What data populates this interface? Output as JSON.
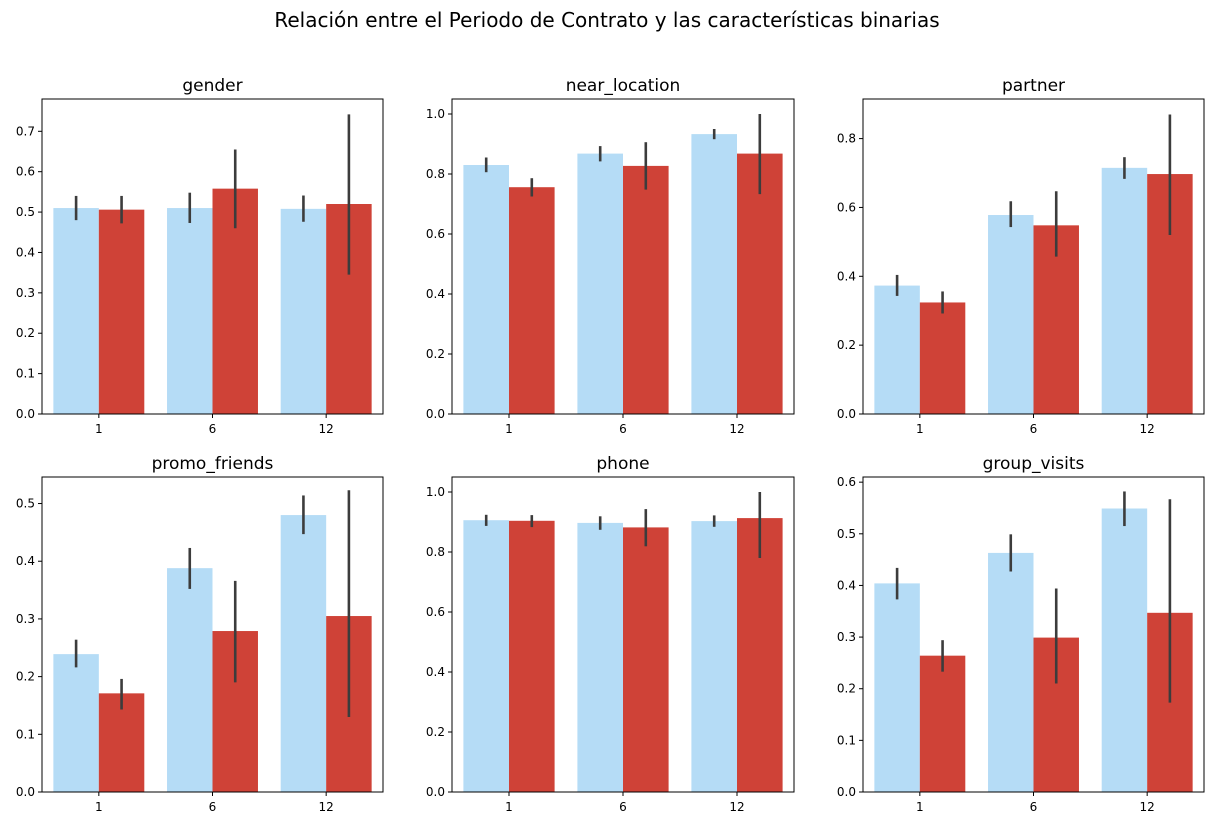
{
  "figure": {
    "suptitle": "Relación entre el Periodo de Contrato y las características binarias"
  },
  "colors": {
    "series_a": "#b5dcf6",
    "series_b": "#cf4237",
    "error_bar": "#3c3c3c"
  },
  "chart_data": [
    {
      "type": "bar",
      "title": "gender",
      "categories": [
        "1",
        "6",
        "12"
      ],
      "ylim": [
        0,
        0.78
      ],
      "yticks": [
        0.0,
        0.1,
        0.2,
        0.3,
        0.4,
        0.5,
        0.6,
        0.7
      ],
      "ytick_labels": [
        "0.0",
        "0.1",
        "0.2",
        "0.3",
        "0.4",
        "0.5",
        "0.6",
        "0.7"
      ],
      "series": [
        {
          "values": [
            0.51,
            0.51,
            0.508
          ],
          "ci": [
            [
              0.48,
              0.54
            ],
            [
              0.473,
              0.548
            ],
            [
              0.476,
              0.541
            ]
          ]
        },
        {
          "values": [
            0.506,
            0.558,
            0.52
          ],
          "ci": [
            [
              0.472,
              0.54
            ],
            [
              0.46,
              0.655
            ],
            [
              0.345,
              0.742
            ]
          ]
        }
      ]
    },
    {
      "type": "bar",
      "title": "near_location",
      "categories": [
        "1",
        "6",
        "12"
      ],
      "ylim": [
        0,
        1.05
      ],
      "yticks": [
        0.0,
        0.2,
        0.4,
        0.6,
        0.8,
        1.0
      ],
      "ytick_labels": [
        "0.0",
        "0.2",
        "0.4",
        "0.6",
        "0.8",
        "1.0"
      ],
      "series": [
        {
          "values": [
            0.83,
            0.868,
            0.933
          ],
          "ci": [
            [
              0.806,
              0.855
            ],
            [
              0.842,
              0.893
            ],
            [
              0.916,
              0.95
            ]
          ]
        },
        {
          "values": [
            0.756,
            0.827,
            0.868
          ],
          "ci": [
            [
              0.725,
              0.786
            ],
            [
              0.748,
              0.906
            ],
            [
              0.733,
              1.0
            ]
          ]
        }
      ]
    },
    {
      "type": "bar",
      "title": "partner",
      "categories": [
        "1",
        "6",
        "12"
      ],
      "ylim": [
        0,
        0.915
      ],
      "yticks": [
        0.0,
        0.2,
        0.4,
        0.6,
        0.8
      ],
      "ytick_labels": [
        "0.0",
        "0.2",
        "0.4",
        "0.6",
        "0.8"
      ],
      "series": [
        {
          "values": [
            0.373,
            0.578,
            0.715
          ],
          "ci": [
            [
              0.343,
              0.404
            ],
            [
              0.543,
              0.618
            ],
            [
              0.683,
              0.746
            ]
          ]
        },
        {
          "values": [
            0.324,
            0.548,
            0.697
          ],
          "ci": [
            [
              0.292,
              0.356
            ],
            [
              0.457,
              0.647
            ],
            [
              0.52,
              0.87
            ]
          ]
        }
      ]
    },
    {
      "type": "bar",
      "title": "promo_friends",
      "categories": [
        "1",
        "6",
        "12"
      ],
      "ylim": [
        0,
        0.546
      ],
      "yticks": [
        0.0,
        0.1,
        0.2,
        0.3,
        0.4,
        0.5
      ],
      "ytick_labels": [
        "0.0",
        "0.1",
        "0.2",
        "0.3",
        "0.4",
        "0.5"
      ],
      "series": [
        {
          "values": [
            0.239,
            0.388,
            0.48
          ],
          "ci": [
            [
              0.216,
              0.264
            ],
            [
              0.352,
              0.423
            ],
            [
              0.447,
              0.514
            ]
          ]
        },
        {
          "values": [
            0.171,
            0.279,
            0.305
          ],
          "ci": [
            [
              0.143,
              0.196
            ],
            [
              0.19,
              0.366
            ],
            [
              0.13,
              0.523
            ]
          ]
        }
      ]
    },
    {
      "type": "bar",
      "title": "phone",
      "categories": [
        "1",
        "6",
        "12"
      ],
      "ylim": [
        0,
        1.05
      ],
      "yticks": [
        0.0,
        0.2,
        0.4,
        0.6,
        0.8,
        1.0
      ],
      "ytick_labels": [
        "0.0",
        "0.2",
        "0.4",
        "0.6",
        "0.8",
        "1.0"
      ],
      "series": [
        {
          "values": [
            0.906,
            0.897,
            0.903
          ],
          "ci": [
            [
              0.887,
              0.924
            ],
            [
              0.874,
              0.919
            ],
            [
              0.884,
              0.922
            ]
          ]
        },
        {
          "values": [
            0.904,
            0.882,
            0.913
          ],
          "ci": [
            [
              0.883,
              0.923
            ],
            [
              0.819,
              0.943
            ],
            [
              0.78,
              1.0
            ]
          ]
        }
      ]
    },
    {
      "type": "bar",
      "title": "group_visits",
      "categories": [
        "1",
        "6",
        "12"
      ],
      "ylim": [
        0,
        0.61
      ],
      "yticks": [
        0.0,
        0.1,
        0.2,
        0.3,
        0.4,
        0.5,
        0.6
      ],
      "ytick_labels": [
        "0.0",
        "0.1",
        "0.2",
        "0.3",
        "0.4",
        "0.5",
        "0.6"
      ],
      "series": [
        {
          "values": [
            0.404,
            0.463,
            0.549
          ],
          "ci": [
            [
              0.373,
              0.434
            ],
            [
              0.427,
              0.499
            ],
            [
              0.515,
              0.582
            ]
          ]
        },
        {
          "values": [
            0.264,
            0.299,
            0.347
          ],
          "ci": [
            [
              0.233,
              0.294
            ],
            [
              0.21,
              0.394
            ],
            [
              0.173,
              0.567
            ]
          ]
        }
      ]
    }
  ]
}
